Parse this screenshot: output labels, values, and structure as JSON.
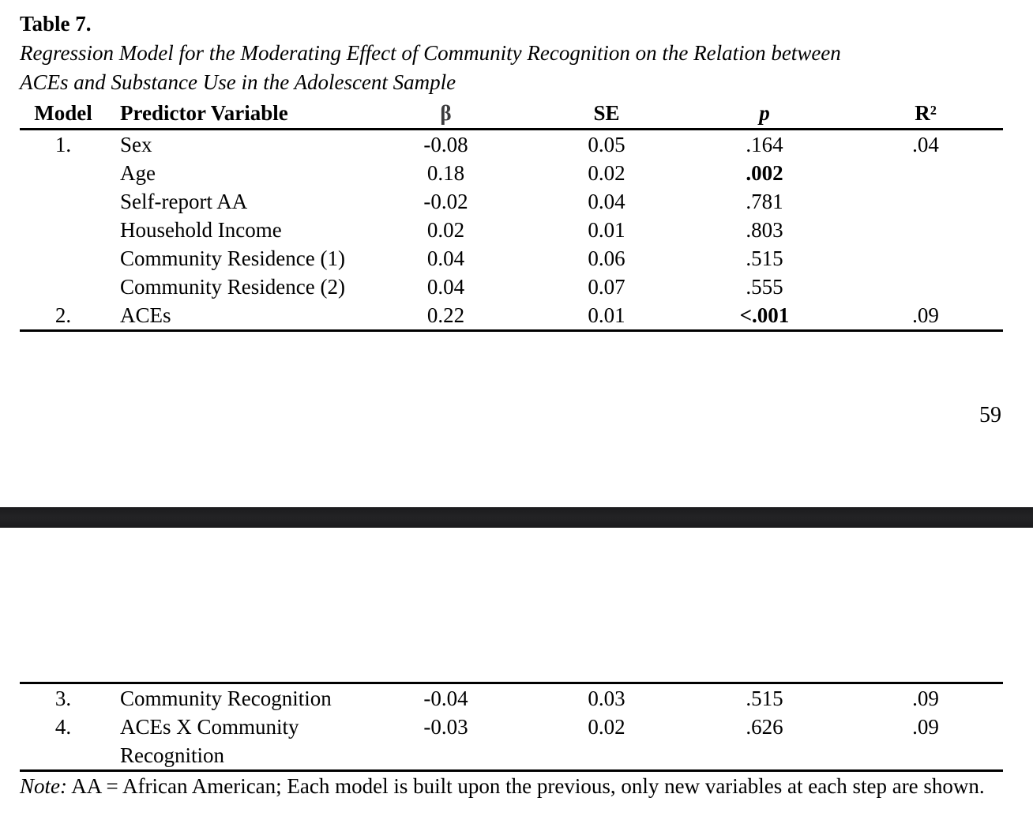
{
  "page_number": "59",
  "table": {
    "label": "Table 7.",
    "caption_line1": "Regression Model for the Moderating Effect of Community Recognition on the Relation between",
    "caption_line2": "ACEs and Substance Use in the Adolescent Sample",
    "headers": {
      "model": "Model",
      "predictor": "Predictor Variable",
      "beta": "β",
      "se": "SE",
      "p": "p",
      "r2": "R²"
    },
    "rows_part1": [
      {
        "model": "1.",
        "predictor": "Sex",
        "beta": "-0.08",
        "se": "0.05",
        "p": ".164",
        "r2": ".04"
      },
      {
        "model": "",
        "predictor": "Age",
        "beta": "0.18",
        "se": "0.02",
        "p": ".002",
        "r2": ""
      },
      {
        "model": "",
        "predictor": "Self-report AA",
        "beta": "-0.02",
        "se": "0.04",
        "p": ".781",
        "r2": ""
      },
      {
        "model": "",
        "predictor": "Household Income",
        "beta": "0.02",
        "se": "0.01",
        "p": ".803",
        "r2": ""
      },
      {
        "model": "",
        "predictor": "Community Residence (1)",
        "beta": "0.04",
        "se": "0.06",
        "p": ".515",
        "r2": ""
      },
      {
        "model": "",
        "predictor": "Community Residence (2)",
        "beta": "0.04",
        "se": "0.07",
        "p": ".555",
        "r2": ""
      },
      {
        "model": "2.",
        "predictor": "ACEs",
        "beta": "0.22",
        "se": "0.01",
        "p": "<.001",
        "r2": ".09"
      }
    ],
    "rows_part2": [
      {
        "model": "3.",
        "predictor": "Community Recognition",
        "beta": "-0.04",
        "se": "0.03",
        "p": ".515",
        "r2": ".09"
      },
      {
        "model": "4.",
        "predictor": "ACEs X Community Recognition",
        "beta": "-0.03",
        "se": "0.02",
        "p": ".626",
        "r2": ".09"
      }
    ],
    "note_label": "Note:",
    "note_body": " AA = African American; Each model is built upon the previous, only new variables at each step are shown."
  }
}
